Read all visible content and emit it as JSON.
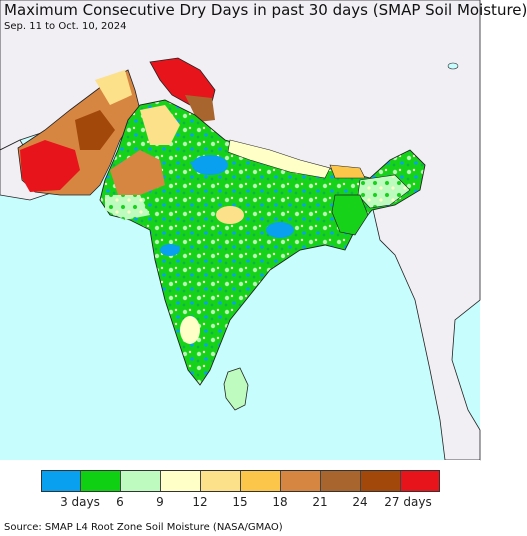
{
  "title": "Maximum Consecutive Dry Days in past 30 days (SMAP Soil Moisture)",
  "subtitle": "Sep. 11 to Oct. 10, 2024",
  "source": "Source: SMAP L4 Root Zone Soil Moisture (NASA/GMAO)",
  "colors": {
    "ocean": "#c8fdfd",
    "neighbor_land": "#f1eef4",
    "border": "#222222"
  },
  "legend": {
    "colors": [
      "#0aa0f0",
      "#10d014",
      "#bdfbbe",
      "#ffffc8",
      "#fde08a",
      "#fcc64a",
      "#d78642",
      "#a8662e",
      "#a2480a",
      "#e8141c"
    ],
    "tick_labels": [
      "3 days",
      "6",
      "9",
      "12",
      "15",
      "18",
      "21",
      "24",
      "27 days"
    ]
  }
}
